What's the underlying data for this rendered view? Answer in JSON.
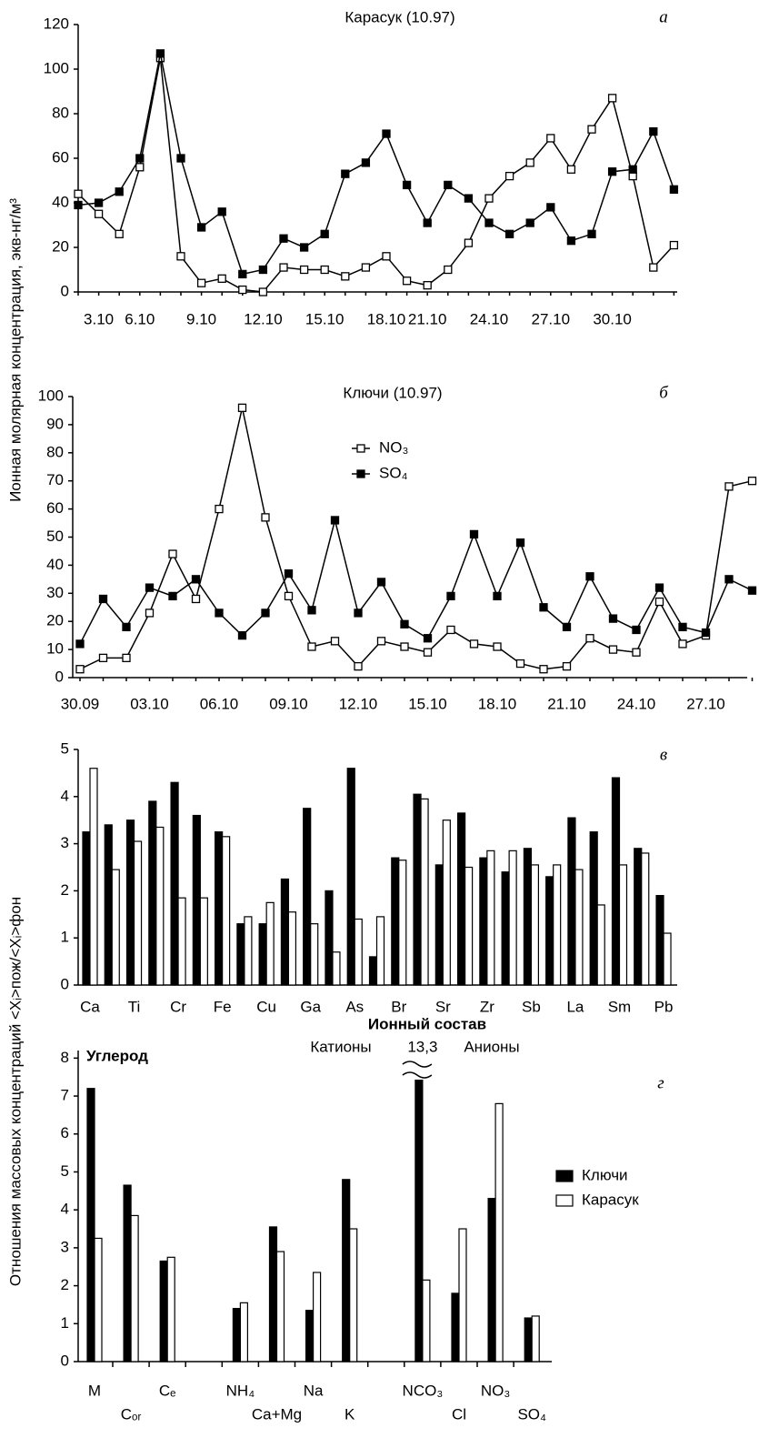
{
  "chart_data": [
    {
      "type": "line",
      "title": "Карасук (10.97)",
      "panel": "а",
      "ylabel": "Ионная молярная концентрация, экв-нг/м³",
      "categories": [
        null,
        "3.10",
        null,
        "6.10",
        null,
        null,
        "9.10",
        null,
        null,
        "12.10",
        null,
        null,
        "15.10",
        null,
        null,
        "18.10",
        null,
        "21.10",
        null,
        null,
        "24.10",
        null,
        null,
        "27.10",
        null,
        null,
        "30.10",
        null,
        null,
        null
      ],
      "series": [
        {
          "marker": "open",
          "color": "#000000",
          "values": [
            44,
            35,
            26,
            56,
            105,
            16,
            4,
            6,
            1,
            0,
            11,
            10,
            10,
            7,
            11,
            16,
            5,
            3,
            10,
            22,
            42,
            52,
            58,
            69,
            55,
            73,
            87,
            52,
            11,
            21
          ]
        },
        {
          "marker": "filled",
          "color": "#000000",
          "values": [
            39,
            40,
            45,
            60,
            107,
            60,
            29,
            36,
            8,
            10,
            24,
            20,
            26,
            53,
            58,
            71,
            48,
            31,
            48,
            42,
            31,
            26,
            31,
            38,
            23,
            26,
            54,
            55,
            72,
            46
          ]
        }
      ],
      "ylim": [
        0,
        120
      ],
      "yticks": [
        0,
        20,
        40,
        60,
        80,
        100,
        120
      ]
    },
    {
      "type": "line",
      "title": "Ключи (10.97)",
      "panel": "б",
      "categories": [
        "30.09",
        null,
        null,
        "03.10",
        null,
        null,
        "06.10",
        null,
        null,
        "09.10",
        null,
        null,
        "12.10",
        null,
        null,
        "15.10",
        null,
        null,
        "18.10",
        null,
        null,
        "21.10",
        null,
        null,
        "24.10",
        null,
        null,
        "27.10",
        null,
        null
      ],
      "series": [
        {
          "name": "NO₃",
          "marker": "open",
          "color": "#000000",
          "values": [
            3,
            7,
            7,
            23,
            44,
            28,
            60,
            96,
            57,
            29,
            11,
            13,
            4,
            13,
            11,
            9,
            17,
            12,
            11,
            5,
            3,
            4,
            14,
            10,
            9,
            27,
            12,
            15,
            68,
            70
          ]
        },
        {
          "name": "SO₄",
          "marker": "filled",
          "color": "#000000",
          "values": [
            12,
            28,
            18,
            32,
            29,
            35,
            23,
            15,
            23,
            37,
            24,
            56,
            23,
            34,
            19,
            14,
            29,
            51,
            29,
            48,
            25,
            18,
            36,
            21,
            17,
            32,
            18,
            16,
            35,
            31
          ]
        }
      ],
      "ylim": [
        0,
        100
      ],
      "yticks": [
        0,
        10,
        20,
        30,
        40,
        50,
        60,
        70,
        80,
        90,
        100
      ]
    },
    {
      "type": "bar",
      "panel": "в",
      "ylabel": "Отношения массовых концентраций <Xᵢ>пож/<Xᵢ>фон",
      "categories": [
        "Ca",
        null,
        "Ti",
        null,
        "Cr",
        null,
        "Fe",
        null,
        "Cu",
        null,
        "Ga",
        null,
        "As",
        null,
        "Br",
        null,
        "Sr",
        null,
        "Zr",
        null,
        "Sb",
        null,
        "La",
        null,
        "Sm",
        null,
        "Pb"
      ],
      "series": [
        {
          "color": "#000000",
          "values": [
            3.25,
            3.4,
            3.5,
            3.9,
            4.3,
            3.6,
            3.25,
            1.3,
            1.3,
            2.25,
            3.75,
            2.0,
            4.6,
            0.6,
            2.7,
            4.05,
            2.55,
            3.65,
            2.7,
            2.4,
            2.9,
            2.3,
            3.55,
            3.25,
            4.4,
            2.9,
            1.9
          ]
        },
        {
          "color": "#ffffff",
          "values": [
            4.6,
            2.45,
            3.05,
            3.35,
            1.85,
            1.85,
            3.15,
            1.45,
            1.75,
            1.55,
            1.3,
            0.7,
            1.4,
            1.45,
            2.65,
            3.95,
            3.5,
            2.5,
            2.85,
            2.85,
            2.55,
            2.55,
            2.45,
            1.7,
            2.55,
            2.8,
            1.1
          ]
        }
      ],
      "ylim": [
        0,
        5
      ],
      "yticks": [
        0,
        1,
        2,
        3,
        4,
        5
      ]
    },
    {
      "type": "bar",
      "panel": "г",
      "left_heading": "Углерод",
      "heading": "Ионный состав",
      "cation_label": "Катионы",
      "anion_label": "Анионы",
      "categories": [
        "M",
        "Cₒᵣ",
        "Cₑ",
        null,
        "NH₄",
        "Ca+Mg",
        "Na",
        "K",
        null,
        "NCO₃",
        "Cl",
        "NO₃",
        "SO₄"
      ],
      "series": [
        {
          "name": "Ключи",
          "color": "#000000",
          "values": [
            7.2,
            4.65,
            2.65,
            null,
            1.4,
            3.55,
            1.35,
            4.8,
            null,
            13.3,
            1.8,
            4.3,
            1.15
          ],
          "value_labels": [
            null,
            null,
            null,
            null,
            null,
            null,
            null,
            null,
            null,
            "13,3",
            null,
            null,
            null
          ]
        },
        {
          "name": "Карасук",
          "color": "#ffffff",
          "values": [
            3.25,
            3.85,
            2.75,
            null,
            1.55,
            2.9,
            2.35,
            3.5,
            null,
            2.15,
            3.5,
            6.8,
            1.2
          ]
        }
      ],
      "ylim": [
        0,
        8.2
      ],
      "yticks": [
        0,
        1,
        2,
        3,
        4,
        5,
        6,
        7,
        8
      ]
    }
  ]
}
